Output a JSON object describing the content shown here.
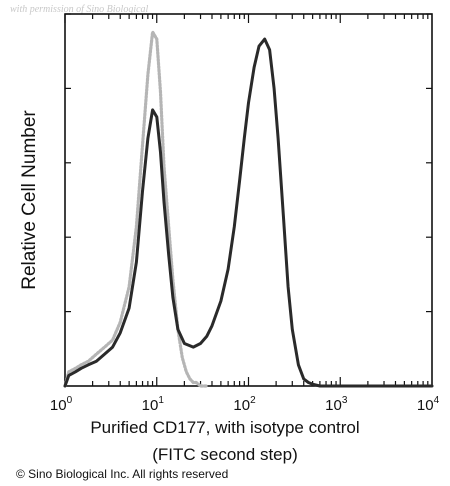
{
  "watermark": "with permission of Sino Biological",
  "copyright": "© Sino Biological Inc. All rights reserved",
  "chart_data": {
    "type": "line",
    "xscale": "log",
    "xlim": [
      1,
      10000
    ],
    "ylim": [
      0,
      1
    ],
    "xlabel_line1": "Purified CD177, with isotype control",
    "xlabel_line2": "(FITC second step)",
    "ylabel": "Relative Cell Number",
    "x_ticks": [
      {
        "base": "10",
        "exp": "0",
        "value": 1
      },
      {
        "base": "10",
        "exp": "1",
        "value": 10
      },
      {
        "base": "10",
        "exp": "2",
        "value": 100
      },
      {
        "base": "10",
        "exp": "3",
        "value": 1000
      },
      {
        "base": "10",
        "exp": "4",
        "value": 10000
      }
    ],
    "series": [
      {
        "color": "#b5b5b5",
        "style": "dotted",
        "x": [
          1.0,
          1.1,
          1.3,
          1.5,
          1.8,
          2.2,
          2.7,
          3.3,
          4.0,
          5.0,
          6.0,
          7.0,
          8.0,
          9.0,
          10.0,
          11.0,
          12.0,
          13.5,
          15.0,
          17.0,
          19.0,
          21.0,
          23.0,
          25.0,
          27.0,
          30.0,
          35.0
        ],
        "y": [
          0.0,
          0.04,
          0.05,
          0.06,
          0.07,
          0.09,
          0.11,
          0.13,
          0.18,
          0.28,
          0.45,
          0.68,
          0.88,
          1.0,
          0.98,
          0.83,
          0.62,
          0.45,
          0.3,
          0.16,
          0.08,
          0.04,
          0.02,
          0.01,
          0.01,
          0.0,
          0.0
        ]
      },
      {
        "color": "#2a2a2a",
        "style": "solid",
        "x": [
          1.0,
          1.1,
          1.3,
          1.5,
          1.8,
          2.2,
          2.7,
          3.3,
          4.0,
          5.0,
          6.0,
          7.0,
          8.0,
          9.0,
          10.0,
          11.0,
          12.0,
          13.5,
          15.0,
          17.0,
          20.0,
          25.0,
          30.0,
          35.0,
          40.0,
          50.0,
          60.0,
          70.0,
          80.0,
          90.0,
          100.0,
          115.0,
          130.0,
          150.0,
          170.0,
          190.0,
          210.0,
          240.0,
          270.0,
          300.0,
          350.0,
          400.0,
          450.0,
          500.0,
          600.0,
          700.0,
          1000.0,
          10000.0
        ],
        "y": [
          0.0,
          0.03,
          0.04,
          0.05,
          0.06,
          0.07,
          0.09,
          0.11,
          0.15,
          0.22,
          0.35,
          0.55,
          0.7,
          0.78,
          0.76,
          0.66,
          0.52,
          0.37,
          0.25,
          0.16,
          0.12,
          0.11,
          0.12,
          0.14,
          0.17,
          0.24,
          0.33,
          0.45,
          0.58,
          0.7,
          0.8,
          0.9,
          0.96,
          0.98,
          0.95,
          0.84,
          0.7,
          0.48,
          0.28,
          0.16,
          0.06,
          0.02,
          0.01,
          0.005,
          0.0,
          0.0,
          0.0,
          0.0
        ]
      }
    ]
  }
}
